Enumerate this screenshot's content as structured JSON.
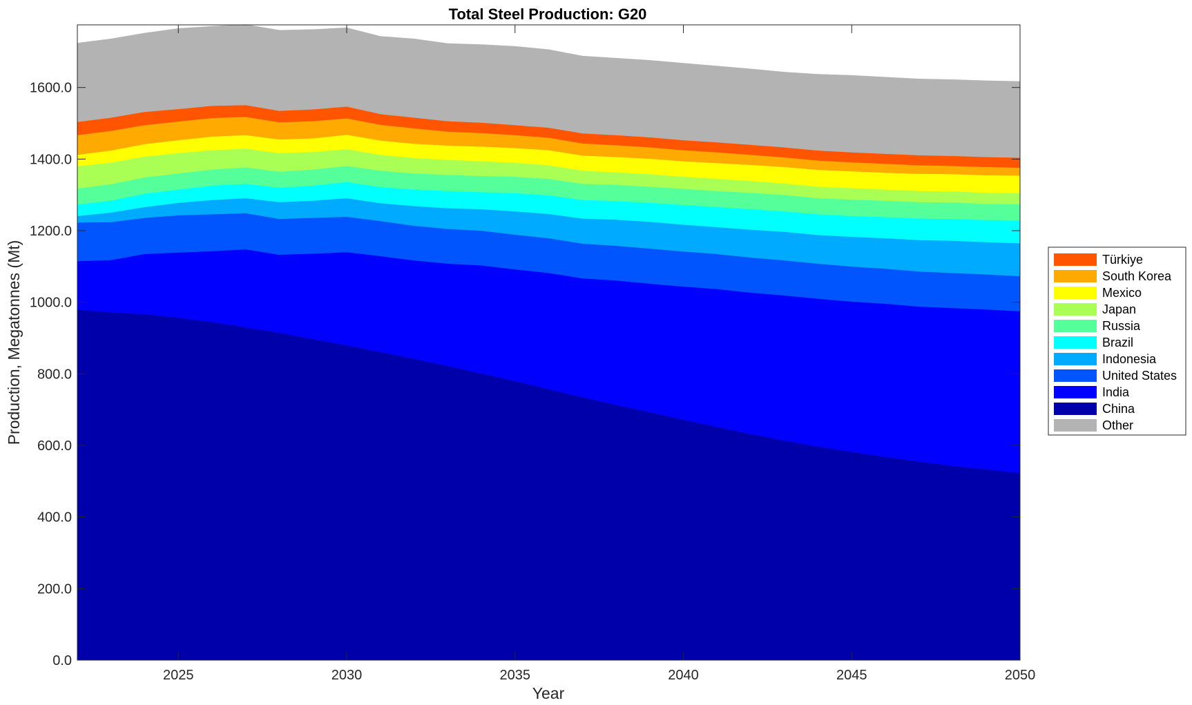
{
  "chart_data": {
    "type": "area",
    "stacked": true,
    "title": "Total Steel Production: G20",
    "xlabel": "Year",
    "ylabel": "Production, Megatonnes (Mt)",
    "xlim": [
      2022,
      2050
    ],
    "ylim": [
      0,
      1775
    ],
    "x_ticks": [
      2025,
      2030,
      2035,
      2040,
      2045,
      2050
    ],
    "y_ticks": [
      0,
      200,
      400,
      600,
      800,
      1000,
      1200,
      1400,
      1600
    ],
    "y_tick_labels": [
      "0.0",
      "200.0",
      "400.0",
      "600.0",
      "800.0",
      "1000.0",
      "1200.0",
      "1400.0",
      "1600.0"
    ],
    "legend_position": "right",
    "x": [
      2022,
      2023,
      2024,
      2025,
      2026,
      2027,
      2028,
      2029,
      2030,
      2031,
      2032,
      2033,
      2034,
      2035,
      2036,
      2037,
      2038,
      2039,
      2040,
      2041,
      2042,
      2043,
      2044,
      2045,
      2046,
      2047,
      2048,
      2049,
      2050
    ],
    "series": [
      {
        "name": "China",
        "color": "#0000aa",
        "values": [
          980,
          972,
          967,
          957,
          945,
          930,
          915,
          897,
          880,
          861,
          842,
          822,
          801,
          780,
          757,
          735,
          713,
          693,
          672,
          652,
          632,
          614,
          597,
          582,
          568,
          555,
          543,
          533,
          523
        ]
      },
      {
        "name": "India",
        "color": "#0000ff",
        "values": [
          135,
          146,
          168,
          182,
          198,
          218,
          218,
          239,
          260,
          268,
          275,
          286,
          302,
          312,
          325,
          332,
          348,
          359,
          372,
          385,
          395,
          405,
          413,
          420,
          428,
          433,
          441,
          447,
          452
        ]
      },
      {
        "name": "United States",
        "color": "#0055ff",
        "values": [
          108,
          106,
          101,
          104,
          103,
          101,
          100,
          100,
          99,
          98,
          97,
          97,
          97,
          97,
          97,
          97,
          97,
          98,
          98,
          98,
          98,
          98,
          98,
          98,
          98,
          98,
          98,
          98,
          98
        ]
      },
      {
        "name": "Indonesia",
        "color": "#00aaff",
        "values": [
          18,
          27,
          30,
          35,
          40,
          42,
          47,
          48,
          52,
          50,
          55,
          58,
          60,
          65,
          68,
          70,
          73,
          75,
          75,
          75,
          78,
          80,
          80,
          83,
          85,
          88,
          90,
          90,
          92
        ]
      },
      {
        "name": "Brazil",
        "color": "#00ffff",
        "values": [
          32,
          33,
          37,
          37,
          40,
          40,
          40,
          42,
          45,
          45,
          46,
          48,
          48,
          51,
          52,
          52,
          52,
          53,
          55,
          56,
          57,
          57,
          58,
          58,
          59,
          60,
          61,
          62,
          63
        ]
      },
      {
        "name": "Russia",
        "color": "#55ff99",
        "values": [
          45,
          46,
          46,
          45,
          45,
          46,
          45,
          45,
          45,
          46,
          45,
          45,
          45,
          46,
          46,
          45,
          45,
          45,
          45,
          45,
          46,
          46,
          45,
          46,
          46,
          46,
          46,
          45,
          46
        ]
      },
      {
        "name": "Japan",
        "color": "#aaff55",
        "values": [
          62,
          60,
          58,
          57,
          54,
          52,
          52,
          49,
          47,
          44,
          43,
          42,
          41,
          39,
          38,
          37,
          35,
          35,
          34,
          34,
          33,
          32,
          32,
          32,
          31,
          31,
          31,
          31,
          31
        ]
      },
      {
        "name": "Mexico",
        "color": "#ffff00",
        "values": [
          32,
          34,
          35,
          36,
          38,
          38,
          38,
          38,
          40,
          40,
          40,
          40,
          41,
          41,
          42,
          42,
          43,
          43,
          43,
          44,
          45,
          46,
          47,
          47,
          47,
          48,
          48,
          49,
          49
        ]
      },
      {
        "name": "South Korea",
        "color": "#ffaa00",
        "values": [
          55,
          55,
          53,
          52,
          52,
          51,
          48,
          48,
          46,
          44,
          43,
          39,
          38,
          36,
          35,
          34,
          33,
          32,
          31,
          30,
          28,
          27,
          26,
          25,
          25,
          24,
          23,
          23,
          22
        ]
      },
      {
        "name": "Türkiye",
        "color": "#ff5500",
        "values": [
          37,
          37,
          37,
          35,
          34,
          33,
          32,
          33,
          33,
          30,
          30,
          29,
          29,
          28,
          28,
          28,
          28,
          28,
          28,
          28,
          28,
          28,
          28,
          28,
          28,
          28,
          28,
          28,
          28
        ]
      },
      {
        "name": "Other",
        "color": "#b3b3b3",
        "values": [
          220,
          220,
          220,
          225,
          222,
          225,
          225,
          223,
          220,
          217,
          220,
          217,
          218,
          220,
          218,
          216,
          215,
          215,
          215,
          213,
          212,
          210,
          213,
          215,
          214,
          213,
          213,
          213,
          213
        ]
      }
    ],
    "legend_order": [
      "Türkiye",
      "South Korea",
      "Mexico",
      "Japan",
      "Russia",
      "Brazil",
      "Indonesia",
      "United States",
      "India",
      "China",
      "Other"
    ]
  }
}
